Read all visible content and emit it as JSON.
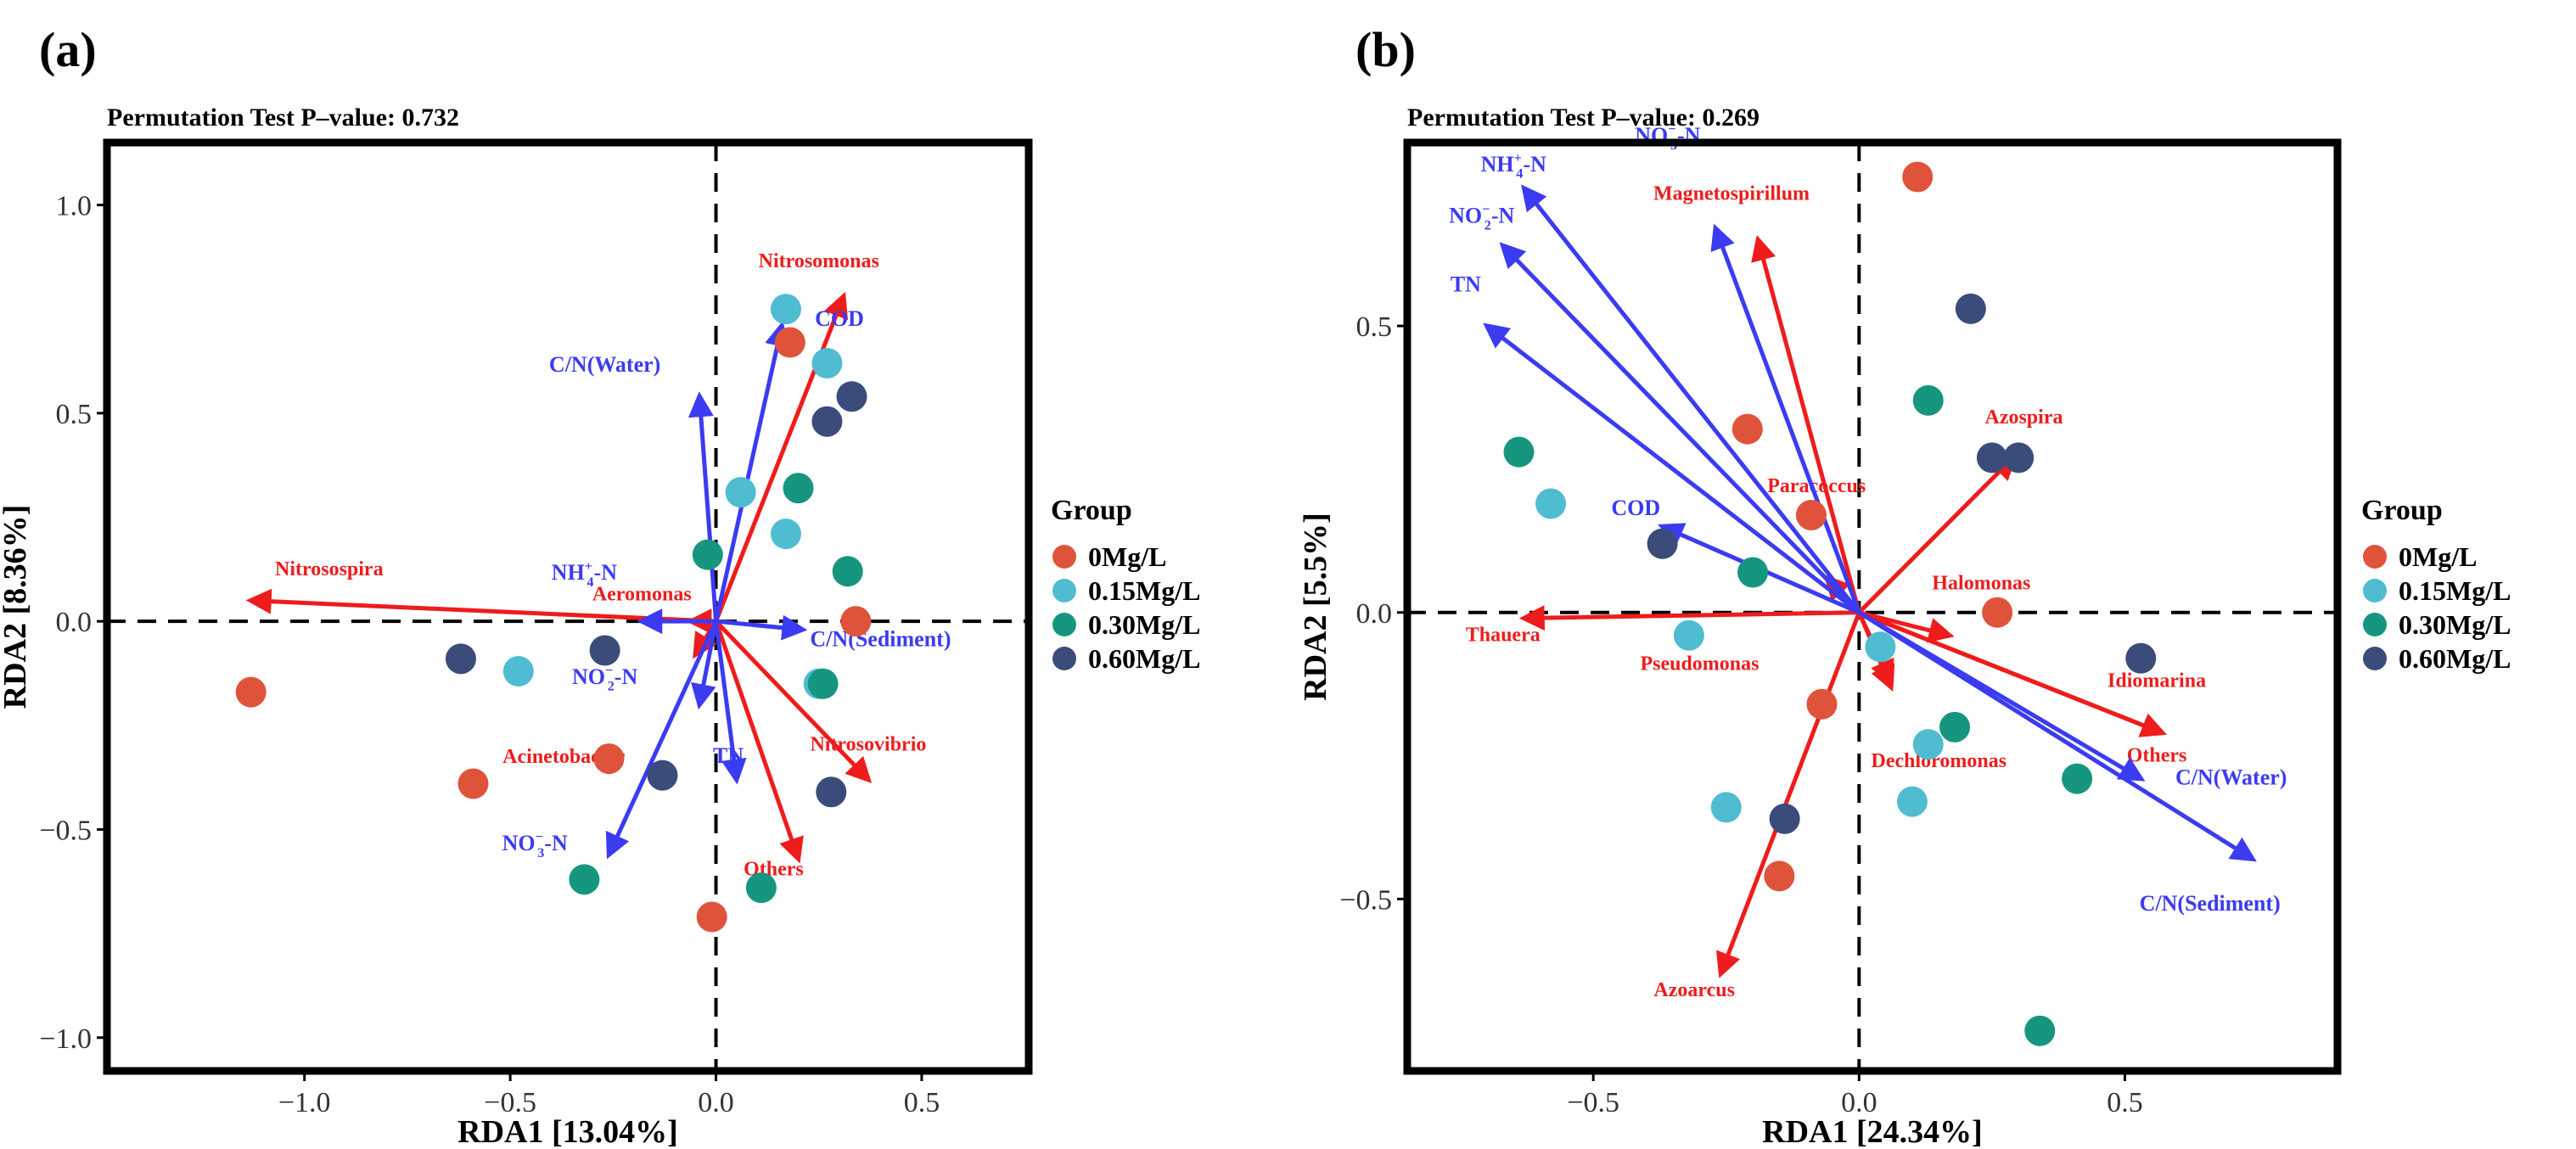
{
  "colors": {
    "group": {
      "0Mg/L": "#e0533b",
      "0.15Mg/L": "#4fbcd1",
      "0.30Mg/L": "#16967f",
      "0.60Mg/L": "#3b4c7a"
    },
    "env_arrow": "#3b3bf2",
    "species_arrow": "#ee1c1c",
    "env_label": "#3b3bf2",
    "species_label": "#ee1c1c"
  },
  "chart_data": [
    {
      "panel": "(a)",
      "type": "scatter",
      "subtitle": "Permutation Test P–value: 0.732",
      "xlabel": "RDA1 [13.04%]",
      "ylabel": "RDA2 [8.36%]",
      "xlim": [
        -1.48,
        0.76
      ],
      "ylim": [
        -1.08,
        1.15
      ],
      "xticks": [
        -1.0,
        -0.5,
        0.0,
        0.5
      ],
      "xtick_labels": [
        "−1.0",
        "−0.5",
        "0.0",
        "0.5"
      ],
      "yticks": [
        -1.0,
        -0.5,
        0.0,
        0.5,
        1.0
      ],
      "ytick_labels": [
        "−1.0",
        "−0.5",
        "0.0",
        "0.5",
        "1.0"
      ],
      "legend": {
        "title": "Group",
        "position": "right",
        "entries": [
          "0Mg/L",
          "0.15Mg/L",
          "0.30Mg/L",
          "0.60Mg/L"
        ]
      },
      "env_vectors": [
        {
          "id": "cod",
          "label": "COD",
          "base": "COD",
          "x": 0.16,
          "y": 0.71,
          "lx": 0.3,
          "ly": 0.71
        },
        {
          "id": "cn-water",
          "label": "C/N(Water)",
          "base": "C/N(Water)",
          "x": -0.04,
          "y": 0.54,
          "lx": -0.27,
          "ly": 0.6
        },
        {
          "id": "nh4",
          "label": "NH4+-N",
          "base": "NH",
          "sub": "4",
          "sup": "+",
          "tail": "-N",
          "x": -0.18,
          "y": 0.0,
          "lx": -0.32,
          "ly": 0.1
        },
        {
          "id": "cn-sediment",
          "label": "C/N(Sediment)",
          "base": "C/N(Sediment)",
          "x": 0.21,
          "y": -0.02,
          "lx": 0.4,
          "ly": -0.06
        },
        {
          "id": "no2",
          "label": "NO2--N",
          "base": "NO",
          "sub": "2",
          "sup": "−",
          "tail": "-N",
          "x": -0.04,
          "y": -0.2,
          "lx": -0.27,
          "ly": -0.15
        },
        {
          "id": "tn",
          "label": "TN",
          "base": "TN",
          "x": 0.05,
          "y": -0.38,
          "lx": 0.03,
          "ly": -0.34
        },
        {
          "id": "no3",
          "label": "NO3--N",
          "base": "NO",
          "sub": "3",
          "sup": "−",
          "tail": "-N",
          "x": -0.26,
          "y": -0.56,
          "lx": -0.44,
          "ly": -0.55
        }
      ],
      "species_vectors": [
        {
          "id": "nitrosomonas",
          "label": "Nitrosomonas",
          "x": 0.31,
          "y": 0.78,
          "lx": 0.25,
          "ly": 0.85
        },
        {
          "id": "nitrosospira",
          "label": "Nitrosospira",
          "x": -1.13,
          "y": 0.05,
          "lx": -0.94,
          "ly": 0.11
        },
        {
          "id": "aeromonas",
          "label": "Aeromonas",
          "x": -0.06,
          "y": 0.0,
          "lx": -0.18,
          "ly": 0.05
        },
        {
          "id": "acinetobacter",
          "label": "Acinetobacter",
          "x": -0.05,
          "y": -0.08,
          "lx": -0.37,
          "ly": -0.34
        },
        {
          "id": "nitrosovibrio",
          "label": "Nitrosovibrio",
          "x": 0.37,
          "y": -0.38,
          "lx": 0.37,
          "ly": -0.31
        },
        {
          "id": "others-a",
          "label": "Others",
          "x": 0.2,
          "y": -0.57,
          "lx": 0.14,
          "ly": -0.61
        }
      ],
      "points": [
        {
          "x": 0.18,
          "y": 0.67,
          "group": "0Mg/L"
        },
        {
          "x": 0.17,
          "y": 0.75,
          "group": "0.15Mg/L"
        },
        {
          "x": 0.34,
          "y": 0.0,
          "group": "0Mg/L"
        },
        {
          "x": -1.13,
          "y": -0.17,
          "group": "0Mg/L"
        },
        {
          "x": -0.59,
          "y": -0.39,
          "group": "0Mg/L"
        },
        {
          "x": -0.26,
          "y": -0.33,
          "group": "0Mg/L"
        },
        {
          "x": -0.01,
          "y": -0.71,
          "group": "0Mg/L"
        },
        {
          "x": 0.27,
          "y": 0.62,
          "group": "0.15Mg/L"
        },
        {
          "x": 0.06,
          "y": 0.31,
          "group": "0.15Mg/L"
        },
        {
          "x": 0.17,
          "y": 0.21,
          "group": "0.15Mg/L"
        },
        {
          "x": -0.48,
          "y": -0.12,
          "group": "0.15Mg/L"
        },
        {
          "x": 0.25,
          "y": -0.15,
          "group": "0.15Mg/L"
        },
        {
          "x": 0.2,
          "y": 0.32,
          "group": "0.30Mg/L"
        },
        {
          "x": -0.02,
          "y": 0.16,
          "group": "0.30Mg/L"
        },
        {
          "x": 0.32,
          "y": 0.12,
          "group": "0.30Mg/L"
        },
        {
          "x": 0.26,
          "y": -0.15,
          "group": "0.30Mg/L"
        },
        {
          "x": -0.32,
          "y": -0.62,
          "group": "0.30Mg/L"
        },
        {
          "x": 0.11,
          "y": -0.64,
          "group": "0.30Mg/L"
        },
        {
          "x": 0.33,
          "y": 0.54,
          "group": "0.60Mg/L"
        },
        {
          "x": 0.27,
          "y": 0.48,
          "group": "0.60Mg/L"
        },
        {
          "x": -0.27,
          "y": -0.07,
          "group": "0.60Mg/L"
        },
        {
          "x": -0.62,
          "y": -0.09,
          "group": "0.60Mg/L"
        },
        {
          "x": -0.13,
          "y": -0.37,
          "group": "0.60Mg/L"
        },
        {
          "x": 0.28,
          "y": -0.41,
          "group": "0.60Mg/L"
        }
      ]
    },
    {
      "panel": "(b)",
      "type": "scatter",
      "subtitle": "Permutation Test P–value: 0.269",
      "xlabel": "RDA1 [24.34%]",
      "ylabel": "RDA2 [5.5%]",
      "xlim": [
        -0.85,
        0.9
      ],
      "ylim": [
        -0.8,
        0.82
      ],
      "xticks": [
        -0.5,
        0.0,
        0.5
      ],
      "xtick_labels": [
        "−0.5",
        "0.0",
        "0.5"
      ],
      "yticks": [
        -0.5,
        0.0,
        0.5
      ],
      "ytick_labels": [
        "−0.5",
        "0.0",
        "0.5"
      ],
      "legend": {
        "title": "Group",
        "position": "right",
        "entries": [
          "0Mg/L",
          "0.15Mg/L",
          "0.30Mg/L",
          "0.60Mg/L"
        ]
      },
      "env_vectors": [
        {
          "id": "nh4",
          "label": "NH4+-N",
          "base": "NH",
          "sub": "4",
          "sup": "+",
          "tail": "-N",
          "x": -0.63,
          "y": 0.74,
          "lx": -0.65,
          "ly": 0.77
        },
        {
          "id": "no2",
          "label": "NO2--N",
          "base": "NO",
          "sub": "2",
          "sup": "−",
          "tail": "-N",
          "x": -0.67,
          "y": 0.64,
          "lx": -0.71,
          "ly": 0.68
        },
        {
          "id": "tn",
          "label": "TN",
          "base": "TN",
          "x": -0.7,
          "y": 0.5,
          "lx": -0.74,
          "ly": 0.56
        },
        {
          "id": "no3",
          "label": "NO3--N",
          "base": "NO",
          "sub": "3",
          "sup": "−",
          "tail": "-N",
          "x": -0.27,
          "y": 0.67,
          "lx": -0.36,
          "ly": 0.82
        },
        {
          "id": "cod",
          "label": "COD",
          "base": "COD",
          "x": -0.37,
          "y": 0.15,
          "lx": -0.42,
          "ly": 0.17
        },
        {
          "id": "cn-water",
          "label": "C/N(Water)",
          "base": "C/N(Water)",
          "x": 0.53,
          "y": -0.29,
          "lx": 0.7,
          "ly": -0.3
        },
        {
          "id": "cn-sediment",
          "label": "C/N(Sediment)",
          "base": "C/N(Sediment)",
          "x": 0.74,
          "y": -0.43,
          "lx": 0.66,
          "ly": -0.52
        }
      ],
      "species_vectors": [
        {
          "id": "magnetospirillum",
          "label": "Magnetospirillum",
          "x": -0.19,
          "y": 0.65,
          "lx": -0.24,
          "ly": 0.72
        },
        {
          "id": "azospira",
          "label": "Azospira",
          "x": 0.29,
          "y": 0.27,
          "lx": 0.31,
          "ly": 0.33
        },
        {
          "id": "paracoccus",
          "label": "Paracoccus",
          "x": -0.06,
          "y": 0.06,
          "lx": -0.08,
          "ly": 0.21
        },
        {
          "id": "halomonas",
          "label": "Halomonas",
          "x": 0.17,
          "y": -0.04,
          "lx": 0.23,
          "ly": 0.04
        },
        {
          "id": "thauera",
          "label": "Thauera",
          "x": -0.63,
          "y": -0.01,
          "lx": -0.67,
          "ly": -0.05
        },
        {
          "id": "pseudomonas",
          "label": "Pseudomonas",
          "x": 0.06,
          "y": -0.13,
          "lx": -0.3,
          "ly": -0.1
        },
        {
          "id": "idiomarina",
          "label": "Idiomarina",
          "x": 0.57,
          "y": -0.21,
          "lx": 0.56,
          "ly": -0.13
        },
        {
          "id": "others-b",
          "label": "Others",
          "x": 0.57,
          "y": -0.21,
          "lx": 0.56,
          "ly": -0.26
        },
        {
          "id": "dechloromonas",
          "label": "Dechloromonas",
          "x": 0.06,
          "y": -0.12,
          "lx": 0.15,
          "ly": -0.27
        },
        {
          "id": "azoarcus",
          "label": "Azoarcus",
          "x": -0.26,
          "y": -0.63,
          "lx": -0.31,
          "ly": -0.67
        }
      ],
      "points": [
        {
          "x": 0.11,
          "y": 0.76,
          "group": "0Mg/L"
        },
        {
          "x": -0.21,
          "y": 0.32,
          "group": "0Mg/L"
        },
        {
          "x": -0.09,
          "y": 0.17,
          "group": "0Mg/L"
        },
        {
          "x": 0.26,
          "y": 0.0,
          "group": "0Mg/L"
        },
        {
          "x": -0.07,
          "y": -0.16,
          "group": "0Mg/L"
        },
        {
          "x": -0.15,
          "y": -0.46,
          "group": "0Mg/L"
        },
        {
          "x": -0.58,
          "y": 0.19,
          "group": "0.15Mg/L"
        },
        {
          "x": -0.32,
          "y": -0.04,
          "group": "0.15Mg/L"
        },
        {
          "x": 0.04,
          "y": -0.06,
          "group": "0.15Mg/L"
        },
        {
          "x": 0.13,
          "y": -0.23,
          "group": "0.15Mg/L"
        },
        {
          "x": -0.25,
          "y": -0.34,
          "group": "0.15Mg/L"
        },
        {
          "x": 0.1,
          "y": -0.33,
          "group": "0.15Mg/L"
        },
        {
          "x": -0.64,
          "y": 0.28,
          "group": "0.30Mg/L"
        },
        {
          "x": 0.13,
          "y": 0.37,
          "group": "0.30Mg/L"
        },
        {
          "x": -0.2,
          "y": 0.07,
          "group": "0.30Mg/L"
        },
        {
          "x": 0.18,
          "y": -0.2,
          "group": "0.30Mg/L"
        },
        {
          "x": 0.41,
          "y": -0.29,
          "group": "0.30Mg/L"
        },
        {
          "x": 0.34,
          "y": -0.73,
          "group": "0.30Mg/L"
        },
        {
          "x": 0.21,
          "y": 0.53,
          "group": "0.60Mg/L"
        },
        {
          "x": 0.25,
          "y": 0.27,
          "group": "0.60Mg/L"
        },
        {
          "x": 0.3,
          "y": 0.27,
          "group": "0.60Mg/L"
        },
        {
          "x": -0.37,
          "y": 0.12,
          "group": "0.60Mg/L"
        },
        {
          "x": 0.53,
          "y": -0.08,
          "group": "0.60Mg/L"
        },
        {
          "x": -0.14,
          "y": -0.36,
          "group": "0.60Mg/L"
        }
      ]
    }
  ]
}
